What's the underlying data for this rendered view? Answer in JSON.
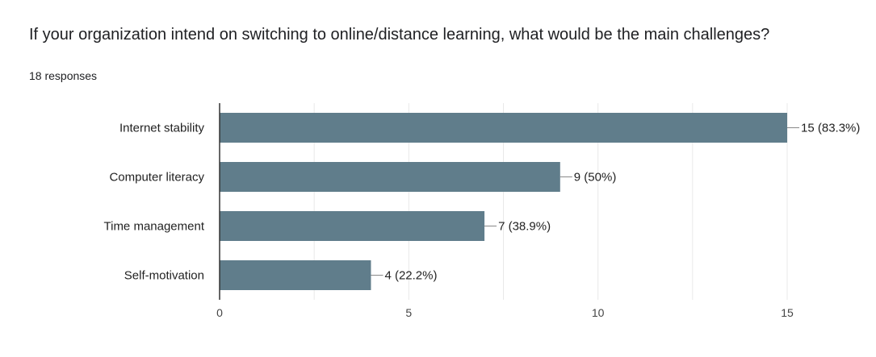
{
  "question": {
    "title": "If your organization intend on switching to online/distance learning, what would be the main challenges?",
    "responses": "18 responses"
  },
  "chart_data": {
    "type": "bar",
    "orientation": "horizontal",
    "categories": [
      "Internet stability",
      "Computer literacy",
      "Time management",
      "Self-motivation"
    ],
    "values": [
      15,
      9,
      7,
      4
    ],
    "data_labels": [
      "15 (83.3%)",
      "9 (50%)",
      "7 (38.9%)",
      "4 (22.2%)"
    ],
    "xticks": [
      0,
      5,
      10,
      15
    ],
    "xlim": [
      0,
      15
    ],
    "grid": true,
    "bar_color": "#607d8b"
  }
}
